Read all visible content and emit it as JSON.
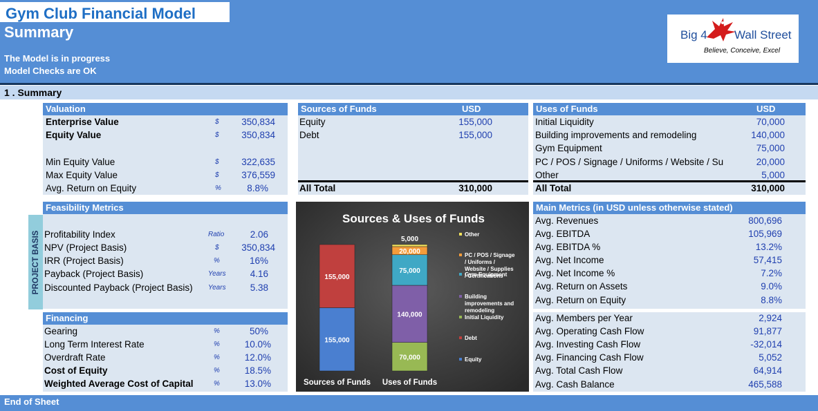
{
  "header": {
    "title": "Gym Club Financial Model",
    "subtitle": "Summary",
    "status_lines": [
      "The Model is in progress",
      "Model Checks are OK"
    ],
    "logo": {
      "left_text": "Big 4",
      "right_text": "Wall Street",
      "tagline": "Believe, Conceive, Excel"
    }
  },
  "section": {
    "label": "1 . Summary"
  },
  "valuation": {
    "title": "Valuation",
    "rows": [
      {
        "label": "Enterprise Value",
        "unit": "$",
        "value": "350,834",
        "bold": true
      },
      {
        "label": "Equity Value",
        "unit": "$",
        "value": "350,834",
        "bold": true
      },
      {
        "label": "",
        "unit": "",
        "value": ""
      },
      {
        "label": "Min Equity Value",
        "unit": "$",
        "value": "322,635"
      },
      {
        "label": "Max Equity Value",
        "unit": "$",
        "value": "376,559"
      },
      {
        "label": "Avg. Return on Equity",
        "unit": "%",
        "value": "8.8%"
      }
    ]
  },
  "sources": {
    "title": "Sources of Funds",
    "currency": "USD",
    "rows": [
      {
        "label": "Equity",
        "value": "155,000"
      },
      {
        "label": "Debt",
        "value": "155,000"
      }
    ],
    "total_label": "All Total",
    "total_value": "310,000"
  },
  "uses": {
    "title": "Uses of Funds",
    "currency": "USD",
    "rows": [
      {
        "label": "Initial Liquidity",
        "value": "70,000"
      },
      {
        "label": "Building improvements and remodeling",
        "value": "140,000"
      },
      {
        "label": "Gym Equipment",
        "value": "75,000"
      },
      {
        "label": "PC / POS / Signage / Uniforms / Website / Su",
        "value": "20,000"
      },
      {
        "label": "Other",
        "value": "5,000"
      }
    ],
    "total_label": "All Total",
    "total_value": "310,000"
  },
  "feasibility": {
    "title": "Feasibility Metrics",
    "side_label": "PROJECT BASIS",
    "rows": [
      {
        "label": "Profitability Index",
        "unit": "Ratio",
        "value": "2.06"
      },
      {
        "label": "NPV (Project Basis)",
        "unit": "$",
        "value": "350,834"
      },
      {
        "label": "IRR (Project Basis)",
        "unit": "%",
        "value": "16%"
      },
      {
        "label": "Payback  (Project Basis)",
        "unit": "Years",
        "value": "4.16"
      },
      {
        "label": "Discounted Payback  (Project Basis)",
        "unit": "Years",
        "value": "5.38"
      }
    ]
  },
  "financing": {
    "title": "Financing",
    "rows": [
      {
        "label": "Gearing",
        "unit": "%",
        "value": "50%"
      },
      {
        "label": "Long Term Interest Rate",
        "unit": "%",
        "value": "10.0%"
      },
      {
        "label": "Overdraft Rate",
        "unit": "%",
        "value": "12.0%"
      },
      {
        "label": "Cost of Equity",
        "unit": "%",
        "value": "18.5%",
        "bold": true
      },
      {
        "label": "Weighted Average Cost of Capital",
        "unit": "%",
        "value": "13.0%",
        "bold": true
      }
    ]
  },
  "main_metrics": {
    "title": "Main Metrics (in USD unless otherwise stated)",
    "rows": [
      {
        "label": "Avg. Revenues",
        "value": "800,696"
      },
      {
        "label": "Avg. EBITDA",
        "value": "105,969"
      },
      {
        "label": "Avg. EBITDA %",
        "value": "13.2%"
      },
      {
        "label": "Avg. Net Income",
        "value": "57,415"
      },
      {
        "label": "Avg. Net Income %",
        "value": "7.2%"
      },
      {
        "label": "Avg. Return on Assets",
        "value": "9.0%"
      },
      {
        "label": "Avg. Return on Equity",
        "value": "8.8%"
      },
      {
        "label": "Avg. Members per Year",
        "value": "2,924"
      },
      {
        "label": "Avg. Operating Cash Flow",
        "value": "91,877"
      },
      {
        "label": "Avg. Investing Cash Flow",
        "value": "-32,014"
      },
      {
        "label": "Avg. Financing Cash Flow",
        "value": "5,052"
      },
      {
        "label": "Avg. Total Cash Flow",
        "value": "64,914"
      },
      {
        "label": "Avg. Cash Balance",
        "value": "465,588"
      }
    ]
  },
  "footer": {
    "label": "End of Sheet"
  },
  "chart_data": {
    "type": "bar",
    "title": "Sources & Uses of Funds",
    "stacked": true,
    "categories": [
      "Sources of Funds",
      "Uses of Funds"
    ],
    "series": [
      {
        "name": "Equity",
        "values": [
          155000,
          0
        ],
        "color": "#4A7FD0",
        "label": "155,000"
      },
      {
        "name": "Debt",
        "values": [
          155000,
          0
        ],
        "color": "#C0403E",
        "label": "155,000"
      },
      {
        "name": "Initial Liquidity",
        "values": [
          0,
          70000
        ],
        "color": "#98B954",
        "label": "70,000"
      },
      {
        "name": "Building improvements and remodeling",
        "values": [
          0,
          140000
        ],
        "color": "#7F5FA8",
        "label": "140,000"
      },
      {
        "name": "Gym Equipment",
        "values": [
          0,
          75000
        ],
        "color": "#3FA8C5",
        "label": "75,000"
      },
      {
        "name": "PC / POS / Signage / Uniforms / Website / Supplies / Certifications",
        "values": [
          0,
          20000
        ],
        "color": "#F59C3A",
        "label": "20,000"
      },
      {
        "name": "Other",
        "values": [
          0,
          5000
        ],
        "color": "#F2E25C",
        "label": "5,000"
      }
    ],
    "legend_order": [
      "Other",
      "PC / POS / Signage / Uniforms / Website / Supplies / Certifications",
      "Gym Equipment",
      "Building improvements and remodeling",
      "Initial Liquidity",
      "Debt",
      "Equity"
    ],
    "legend_position": "right",
    "ylim": [
      0,
      310000
    ],
    "grid": false
  }
}
